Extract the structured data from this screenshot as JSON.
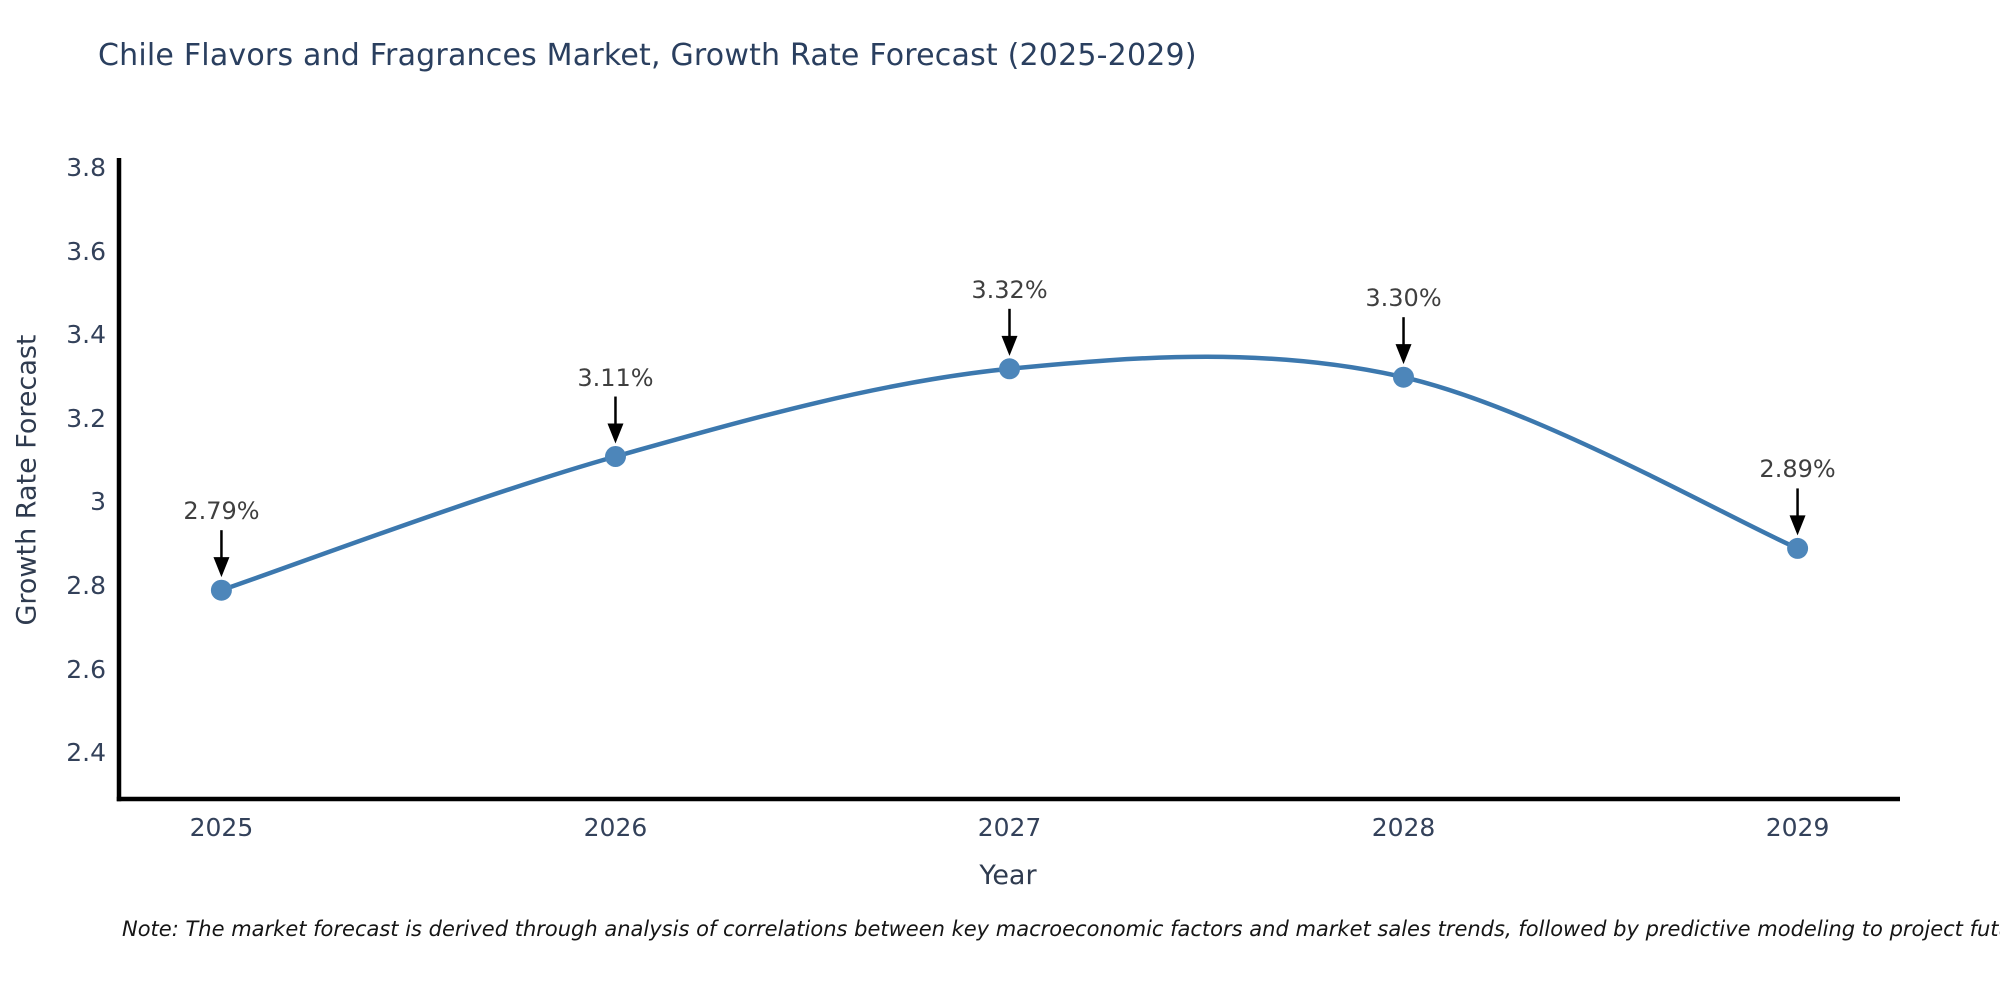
{
  "chart": {
    "note": "Note: The market forecast is derived through analysis of correlations between key macroeconomic factors and market sales trends, followed by predictive modeling to project future sales."
  },
  "chart_data": {
    "type": "line",
    "line_shape": "spline",
    "title": "Chile Flavors and Fragrances Market, Growth Rate Forecast (2025-2029)",
    "xlabel": "Year",
    "ylabel": "Growth Rate Forecast",
    "x": [
      2025,
      2026,
      2027,
      2028,
      2029
    ],
    "y": [
      2.79,
      3.11,
      3.32,
      3.3,
      2.89
    ],
    "point_labels": [
      "2.79%",
      "3.11%",
      "3.32%",
      "3.30%",
      "2.89%"
    ],
    "xtick_labels": [
      "2025",
      "2026",
      "2027",
      "2028",
      "2029"
    ],
    "yticks": [
      2.4,
      2.6,
      2.8,
      3,
      3.2,
      3.4,
      3.6,
      3.8
    ],
    "ytick_labels": [
      "2.4",
      "2.6",
      "2.8",
      "3",
      "3.2",
      "3.4",
      "3.6",
      "3.8"
    ],
    "xlim": [
      2024.74,
      2029.26
    ],
    "ylim": [
      2.29,
      3.82
    ],
    "grid": false,
    "legend": "none",
    "annotations_have_arrows": true,
    "colors": {
      "line": "#3c78ae",
      "marker": "#4d86ba",
      "axis": "#000000",
      "arrow": "#000000",
      "title_text": "#2a3f5f",
      "axis_label_text": "#2f3b4f",
      "tick_text": "#33415a",
      "annotation_text": "#3f3f3f",
      "note_text": "#151515",
      "background": "#ffffff"
    }
  }
}
